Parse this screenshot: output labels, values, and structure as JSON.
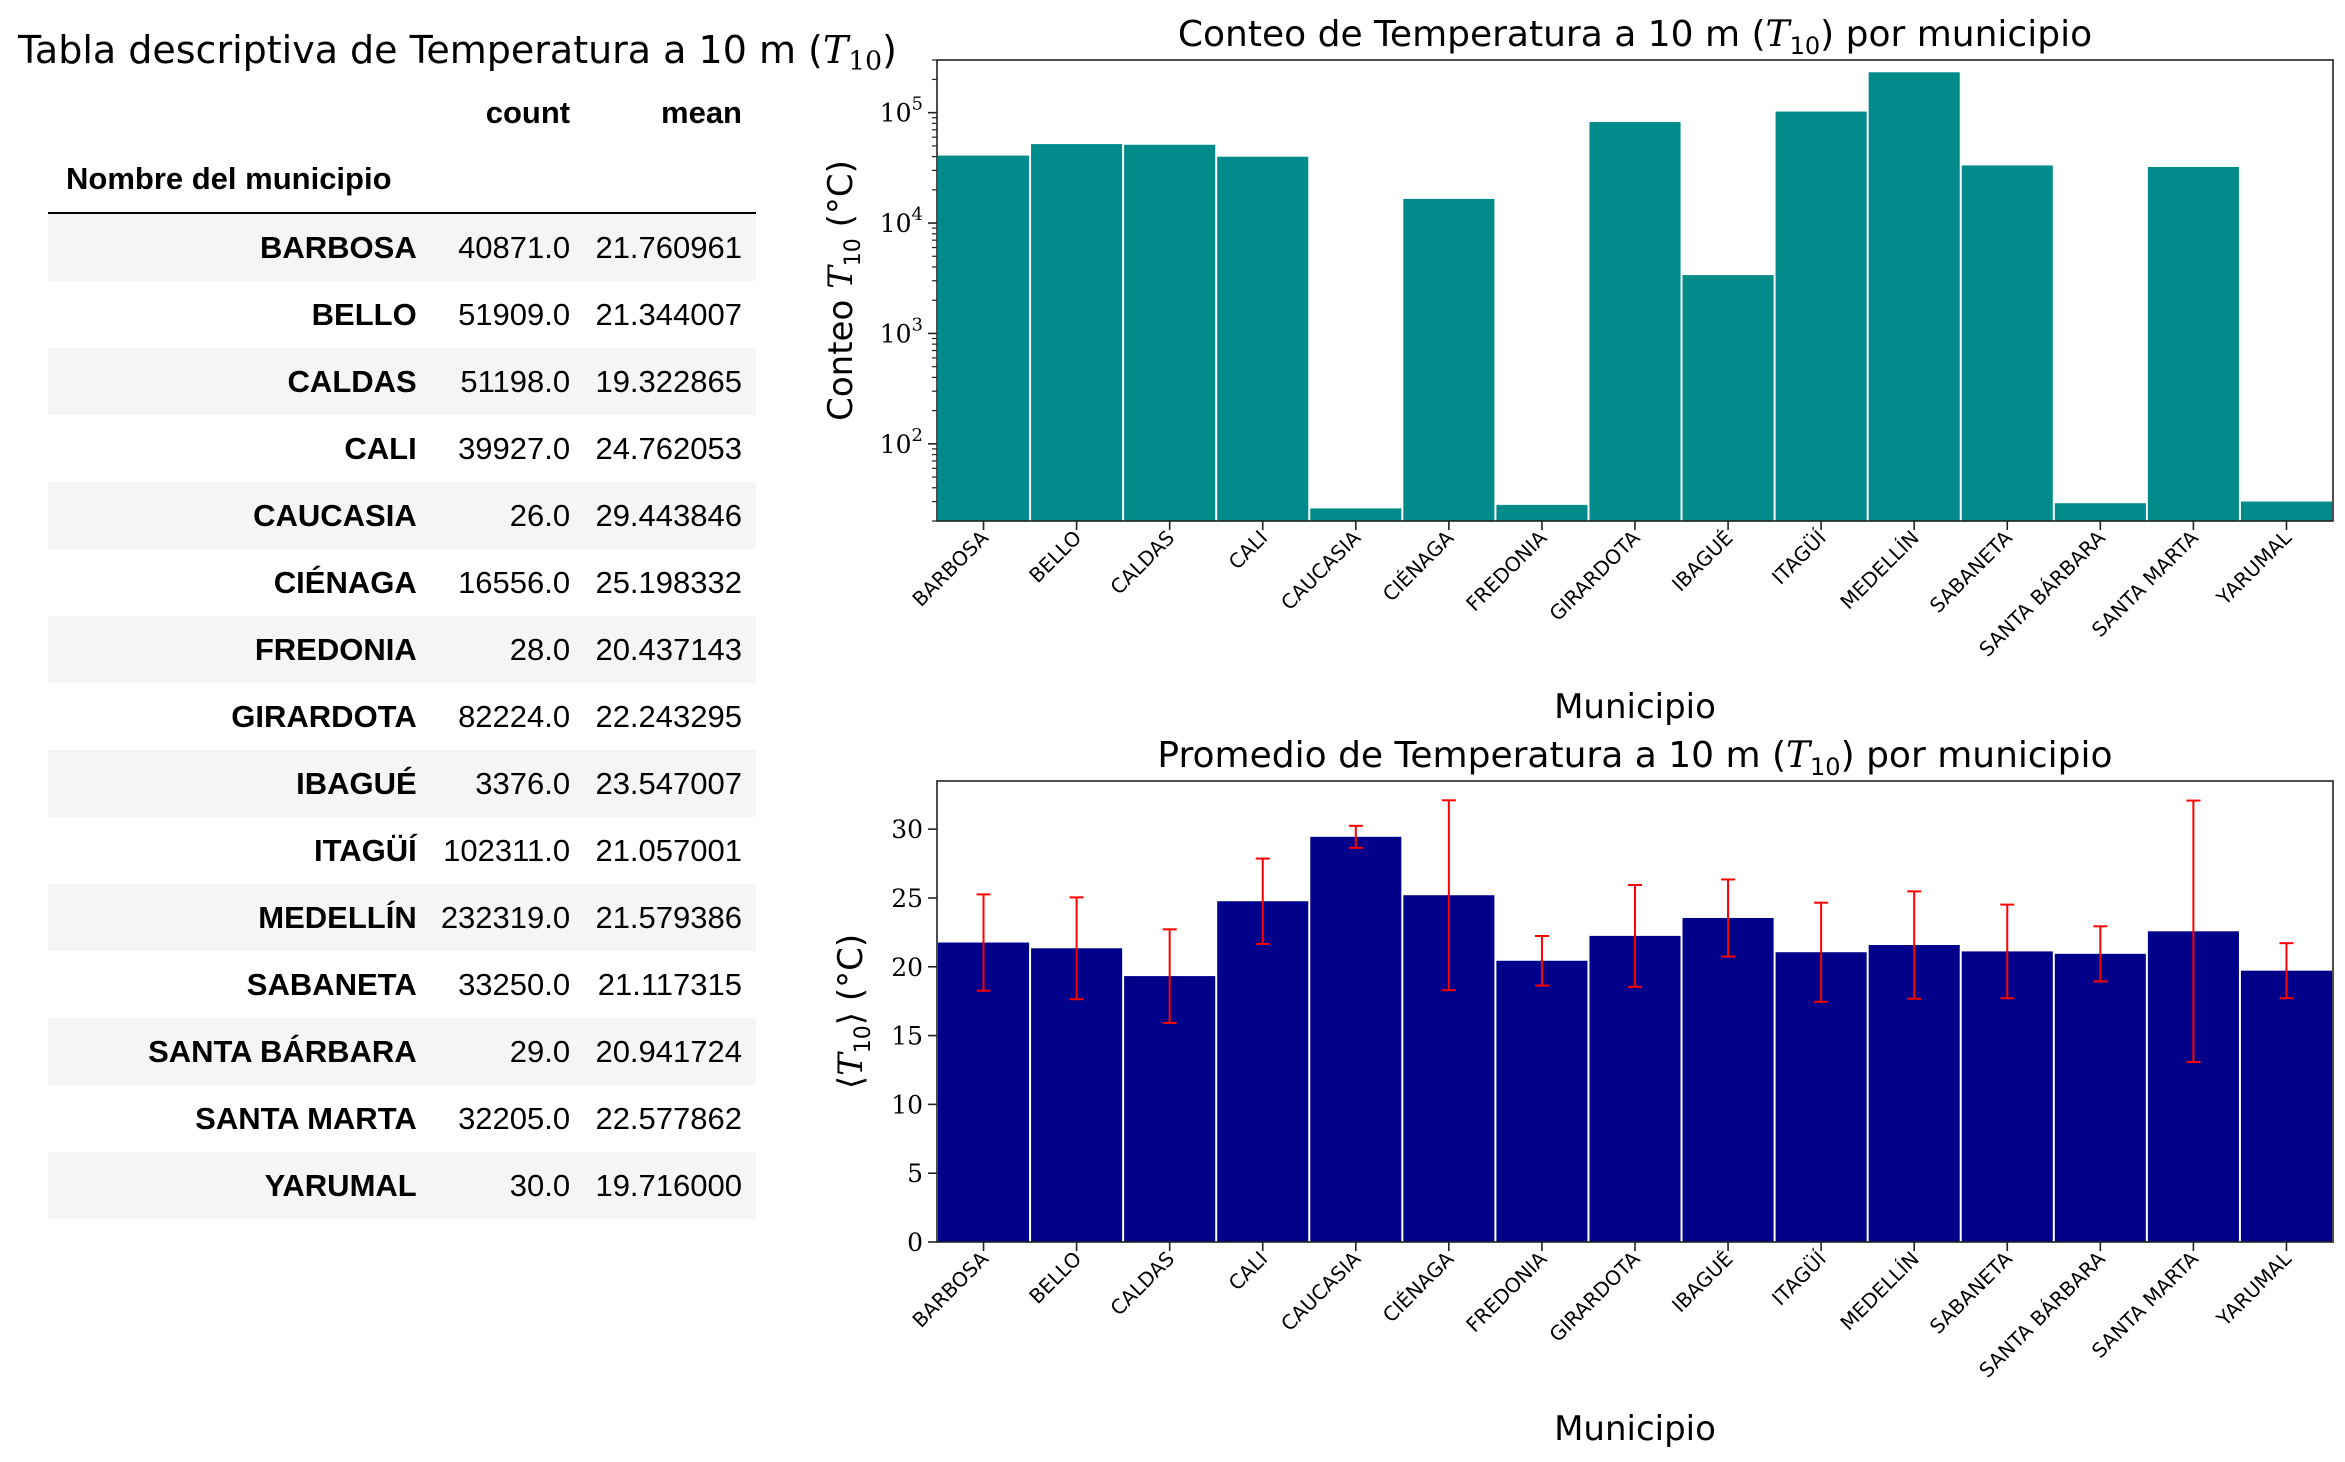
{
  "table": {
    "title_prefix": "Tabla descriptiva de Temperatura a 10 m (",
    "title_var": "T",
    "title_sub": "10",
    "title_suffix": ")",
    "columns": [
      "count",
      "mean"
    ],
    "index_name": "Nombre del municipio",
    "rows": [
      {
        "name": "BARBOSA",
        "count": "40871.0",
        "mean": "21.760961"
      },
      {
        "name": "BELLO",
        "count": "51909.0",
        "mean": "21.344007"
      },
      {
        "name": "CALDAS",
        "count": "51198.0",
        "mean": "19.322865"
      },
      {
        "name": "CALI",
        "count": "39927.0",
        "mean": "24.762053"
      },
      {
        "name": "CAUCASIA",
        "count": "26.0",
        "mean": "29.443846"
      },
      {
        "name": "CIÉNAGA",
        "count": "16556.0",
        "mean": "25.198332"
      },
      {
        "name": "FREDONIA",
        "count": "28.0",
        "mean": "20.437143"
      },
      {
        "name": "GIRARDOTA",
        "count": "82224.0",
        "mean": "22.243295"
      },
      {
        "name": "IBAGUÉ",
        "count": "3376.0",
        "mean": "23.547007"
      },
      {
        "name": "ITAGÜÍ",
        "count": "102311.0",
        "mean": "21.057001"
      },
      {
        "name": "MEDELLÍN",
        "count": "232319.0",
        "mean": "21.579386"
      },
      {
        "name": "SABANETA",
        "count": "33250.0",
        "mean": "21.117315"
      },
      {
        "name": "SANTA BÁRBARA",
        "count": "29.0",
        "mean": "20.941724"
      },
      {
        "name": "SANTA MARTA",
        "count": "32205.0",
        "mean": "22.577862"
      },
      {
        "name": "YARUMAL",
        "count": "30.0",
        "mean": "19.716000"
      }
    ]
  },
  "chart_data": [
    {
      "type": "bar",
      "title_prefix": "Conteo de Temperatura a 10 m (",
      "title_var": "T",
      "title_sub": "10",
      "title_suffix": ") por municipio",
      "xlabel": "Municipio",
      "ylabel_prefix": "Conteo ",
      "ylabel_var": "T",
      "ylabel_sub": "10",
      "ylabel_suffix": " (°C)",
      "yscale": "log",
      "ylim": [
        20,
        300000
      ],
      "yticks": [
        100,
        1000,
        10000,
        100000
      ],
      "ytick_exponents": [
        "2",
        "3",
        "4",
        "5"
      ],
      "ytick_base": "10",
      "bar_color": "#008b8b",
      "categories": [
        "BARBOSA",
        "BELLO",
        "CALDAS",
        "CALI",
        "CAUCASIA",
        "CIÉNAGA",
        "FREDONIA",
        "GIRARDOTA",
        "IBAGUÉ",
        "ITAGÜÍ",
        "MEDELLÍN",
        "SABANETA",
        "SANTA BÁRBARA",
        "SANTA MARTA",
        "YARUMAL"
      ],
      "values": [
        40871,
        51909,
        51198,
        39927,
        26,
        16556,
        28,
        82224,
        3376,
        102311,
        232319,
        33250,
        29,
        32205,
        30
      ],
      "grid": false
    },
    {
      "type": "bar",
      "title_prefix": "Promedio de Temperatura a 10 m (",
      "title_var": "T",
      "title_sub": "10",
      "title_suffix": ") por municipio",
      "xlabel": "Municipio",
      "ylabel_var": "T",
      "ylabel_sub": "10",
      "ylabel_suffix": " (°C)",
      "yscale": "linear",
      "ylim": [
        0,
        33.5
      ],
      "yticks": [
        0,
        5,
        10,
        15,
        20,
        25,
        30
      ],
      "bar_color": "#00008b",
      "error_color": "#ff0000",
      "categories": [
        "BARBOSA",
        "BELLO",
        "CALDAS",
        "CALI",
        "CAUCASIA",
        "CIÉNAGA",
        "FREDONIA",
        "GIRARDOTA",
        "IBAGUÉ",
        "ITAGÜÍ",
        "MEDELLÍN",
        "SABANETA",
        "SANTA BÁRBARA",
        "SANTA MARTA",
        "YARUMAL"
      ],
      "values": [
        21.760961,
        21.344007,
        19.322865,
        24.762053,
        29.443846,
        25.198332,
        20.437143,
        22.243295,
        23.547007,
        21.057001,
        21.579386,
        21.117315,
        20.941724,
        22.577862,
        19.716
      ],
      "errors": [
        3.5,
        3.7,
        3.4,
        3.1,
        0.8,
        6.9,
        1.8,
        3.7,
        2.8,
        3.6,
        3.9,
        3.4,
        2.0,
        9.5,
        2.0
      ],
      "grid": false
    }
  ]
}
